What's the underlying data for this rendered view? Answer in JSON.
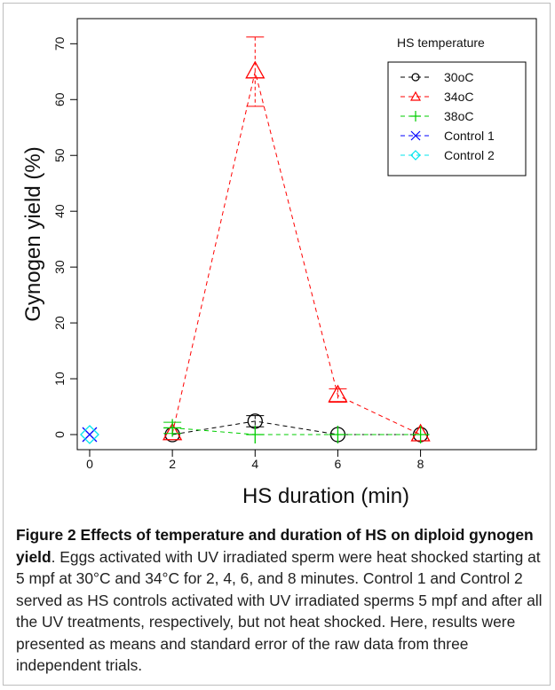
{
  "chart_data": {
    "type": "line",
    "xlabel": "HS duration (min)",
    "ylabel": "Gynogen yield (%)",
    "xlim": [
      -0.3,
      10.8
    ],
    "ylim": [
      -2.7,
      74.5
    ],
    "x_ticks": [
      0,
      2,
      4,
      6,
      8
    ],
    "y_ticks": [
      0,
      10,
      20,
      30,
      40,
      50,
      60,
      70
    ],
    "grid": false,
    "legend_title": "HS temperature",
    "legend_position": "top-right",
    "series": [
      {
        "name": "30oC",
        "color": "#000000",
        "marker": "circle",
        "x": [
          2,
          4,
          6,
          8
        ],
        "y": [
          0,
          2.4,
          0,
          0
        ],
        "err": [
          0,
          1.0,
          0,
          0
        ]
      },
      {
        "name": "34oC",
        "color": "#ff0000",
        "marker": "triangle",
        "x": [
          2,
          4,
          6,
          8
        ],
        "y": [
          0.2,
          65.0,
          7.0,
          0
        ],
        "err": [
          0,
          6.2,
          1.2,
          0
        ]
      },
      {
        "name": "38oC",
        "color": "#00cd00",
        "marker": "plus",
        "x": [
          2,
          4,
          6,
          8
        ],
        "y": [
          1.2,
          0,
          0,
          0
        ],
        "err": [
          1.0,
          0,
          0,
          0
        ]
      },
      {
        "name": "Control 1",
        "color": "#0000ff",
        "marker": "x",
        "x": [
          0
        ],
        "y": [
          0
        ],
        "err": [
          0
        ]
      },
      {
        "name": "Control 2",
        "color": "#00e5ee",
        "marker": "diamond",
        "x": [
          0
        ],
        "y": [
          0
        ],
        "err": [
          0
        ]
      }
    ]
  },
  "caption": {
    "label": "Figure 2",
    "title": "Effects of temperature and duration of HS on diploid gynogen yield",
    "text": ". Eggs activated with UV irradiated sperm were heat shocked starting at 5 mpf at 30°C and 34°C for 2, 4, 6, and 8 minutes. Control 1 and Control 2 served as HS controls activated with UV irradiated sperms 5 mpf and after all the UV treatments, respectively, but not heat shocked. Here, results were presented as means and standard error of the raw data from three independent trials."
  }
}
